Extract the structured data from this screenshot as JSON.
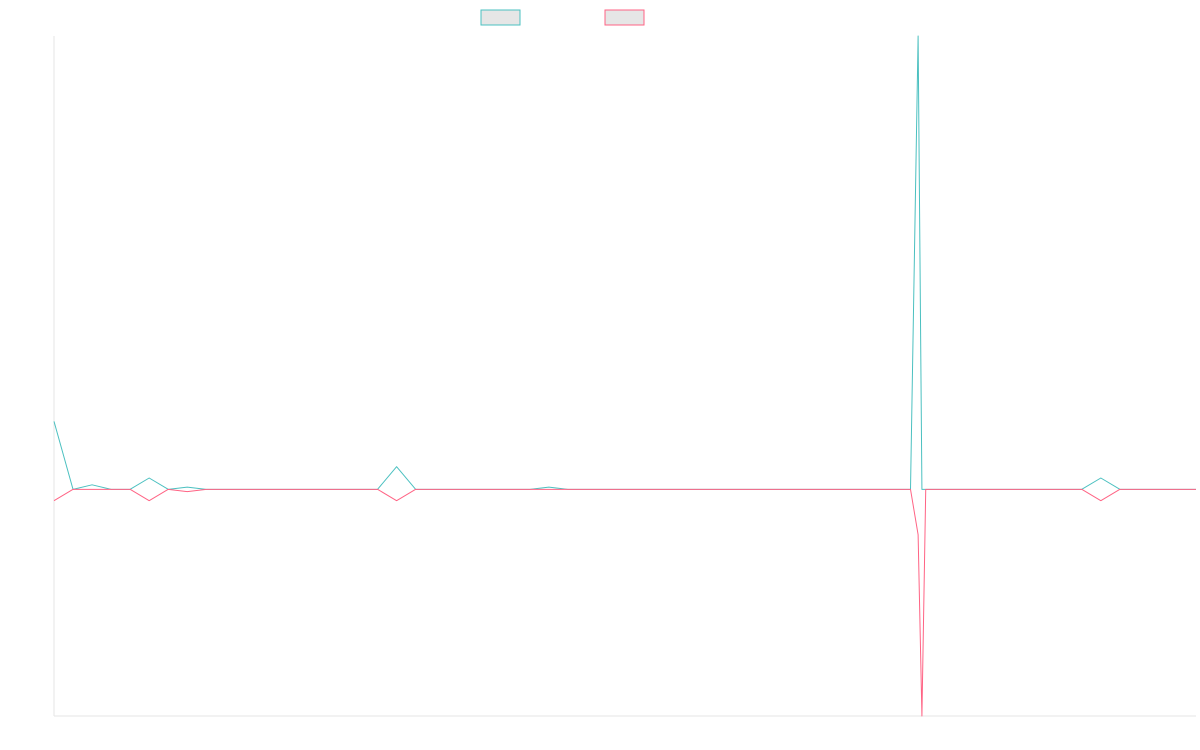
{
  "chart_data": {
    "type": "line",
    "title": "",
    "xlabel": "",
    "ylabel": "",
    "grid": false,
    "legend": "top-center",
    "x_count": 60,
    "ylim": [
      -1.0,
      2.0
    ],
    "series": [
      {
        "color": "#4bc0c0",
        "fill": "#e6e6e6",
        "points": [
          [
            0,
            0.3
          ],
          [
            1,
            0.0
          ],
          [
            2,
            0.02
          ],
          [
            3,
            0.0
          ],
          [
            4,
            0.0
          ],
          [
            5,
            0.05
          ],
          [
            6,
            0.0
          ],
          [
            7,
            0.01
          ],
          [
            8,
            0.0
          ],
          [
            9,
            0.0
          ],
          [
            10,
            0.0
          ],
          [
            11,
            0.0
          ],
          [
            12,
            0.0
          ],
          [
            13,
            0.0
          ],
          [
            14,
            0.0
          ],
          [
            15,
            0.0
          ],
          [
            16,
            0.0
          ],
          [
            17,
            0.0
          ],
          [
            18,
            0.1
          ],
          [
            19,
            0.0
          ],
          [
            20,
            0.0
          ],
          [
            21,
            0.0
          ],
          [
            22,
            0.0
          ],
          [
            23,
            0.0
          ],
          [
            24,
            0.0
          ],
          [
            25,
            0.0
          ],
          [
            26,
            0.01
          ],
          [
            27,
            0.0
          ],
          [
            28,
            0.0
          ],
          [
            29,
            0.0
          ],
          [
            30,
            0.0
          ],
          [
            31,
            0.0
          ],
          [
            32,
            0.0
          ],
          [
            33,
            0.0
          ],
          [
            34,
            0.0
          ],
          [
            35,
            0.0
          ],
          [
            36,
            0.0
          ],
          [
            37,
            0.0
          ],
          [
            38,
            0.0
          ],
          [
            39,
            0.0
          ],
          [
            40,
            0.0
          ],
          [
            41,
            0.0
          ],
          [
            42,
            0.0
          ],
          [
            43,
            0.0
          ],
          [
            44,
            0.0
          ],
          [
            45,
            0.0
          ],
          [
            45.4,
            2.0
          ],
          [
            45.6,
            0.0
          ],
          [
            46,
            0.0
          ],
          [
            47,
            0.0
          ],
          [
            48,
            0.0
          ],
          [
            49,
            0.0
          ],
          [
            50,
            0.0
          ],
          [
            51,
            0.0
          ],
          [
            52,
            0.0
          ],
          [
            53,
            0.0
          ],
          [
            54,
            0.0
          ],
          [
            55,
            0.05
          ],
          [
            56,
            0.0
          ],
          [
            57,
            0.0
          ],
          [
            58,
            0.0
          ],
          [
            59,
            0.0
          ],
          [
            60,
            0.0
          ]
        ]
      },
      {
        "color": "#ff6384",
        "fill": "#e6e6e6",
        "points": [
          [
            0,
            -0.05
          ],
          [
            1,
            0.0
          ],
          [
            2,
            0.0
          ],
          [
            3,
            0.0
          ],
          [
            4,
            0.0
          ],
          [
            5,
            -0.05
          ],
          [
            6,
            0.0
          ],
          [
            7,
            -0.01
          ],
          [
            8,
            0.0
          ],
          [
            9,
            0.0
          ],
          [
            10,
            0.0
          ],
          [
            11,
            0.0
          ],
          [
            12,
            0.0
          ],
          [
            13,
            0.0
          ],
          [
            14,
            0.0
          ],
          [
            15,
            0.0
          ],
          [
            16,
            0.0
          ],
          [
            17,
            0.0
          ],
          [
            18,
            -0.05
          ],
          [
            19,
            0.0
          ],
          [
            20,
            0.0
          ],
          [
            21,
            0.0
          ],
          [
            22,
            0.0
          ],
          [
            23,
            0.0
          ],
          [
            24,
            0.0
          ],
          [
            25,
            0.0
          ],
          [
            26,
            0.0
          ],
          [
            27,
            0.0
          ],
          [
            28,
            0.0
          ],
          [
            29,
            0.0
          ],
          [
            30,
            0.0
          ],
          [
            31,
            0.0
          ],
          [
            32,
            0.0
          ],
          [
            33,
            0.0
          ],
          [
            34,
            0.0
          ],
          [
            35,
            0.0
          ],
          [
            36,
            0.0
          ],
          [
            37,
            0.0
          ],
          [
            38,
            0.0
          ],
          [
            39,
            0.0
          ],
          [
            40,
            0.0
          ],
          [
            41,
            0.0
          ],
          [
            42,
            0.0
          ],
          [
            43,
            0.0
          ],
          [
            44,
            0.0
          ],
          [
            45,
            0.0
          ],
          [
            45.4,
            -0.2
          ],
          [
            45.6,
            -1.0
          ],
          [
            45.8,
            0.0
          ],
          [
            46,
            0.0
          ],
          [
            47,
            0.0
          ],
          [
            48,
            0.0
          ],
          [
            49,
            0.0
          ],
          [
            50,
            0.0
          ],
          [
            51,
            0.0
          ],
          [
            52,
            0.0
          ],
          [
            53,
            0.0
          ],
          [
            54,
            0.0
          ],
          [
            55,
            -0.05
          ],
          [
            56,
            0.0
          ],
          [
            57,
            0.0
          ],
          [
            58,
            0.0
          ],
          [
            59,
            0.0
          ],
          [
            60,
            0.0
          ]
        ]
      }
    ]
  }
}
